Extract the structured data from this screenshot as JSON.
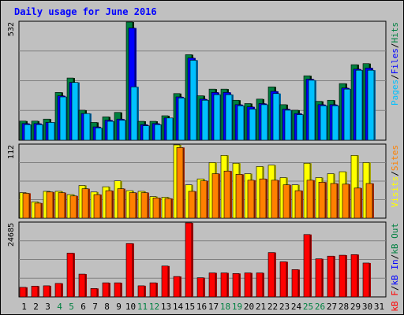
{
  "chart_data": {
    "type": "bar",
    "title": "Daily usage for June 2016",
    "categories": [
      "1",
      "2",
      "3",
      "4",
      "5",
      "6",
      "7",
      "8",
      "9",
      "10",
      "11",
      "12",
      "13",
      "14",
      "15",
      "16",
      "17",
      "18",
      "19",
      "20",
      "21",
      "22",
      "23",
      "24",
      "25",
      "26",
      "27",
      "28",
      "29",
      "30",
      "31"
    ],
    "weekend_days": [
      "4",
      "5",
      "11",
      "12",
      "18",
      "19",
      "25",
      "26"
    ],
    "panels": [
      {
        "id": "top",
        "ymax_label": "532",
        "ymax": 532,
        "legend": [
          {
            "text": "Pages",
            "color": "#00c0ff"
          },
          {
            "text": "/",
            "color": "#000000"
          },
          {
            "text": "Files",
            "color": "#0000ff"
          },
          {
            "text": "/",
            "color": "#000000"
          },
          {
            "text": "Hits",
            "color": "#008040"
          }
        ],
        "series": [
          {
            "name": "Hits",
            "color": "#008040",
            "values": [
              86,
              86,
              95,
              215,
              280,
              135,
              80,
              105,
              125,
              532,
              85,
              85,
              110,
              210,
              385,
              200,
              230,
              230,
              180,
              165,
              185,
              240,
              160,
              135,
              290,
              175,
              180,
              255,
              340,
              345,
              0
            ]
          },
          {
            "name": "Files",
            "color": "#0000ff",
            "values": [
              75,
              75,
              80,
              200,
              260,
              120,
              60,
              90,
              95,
              505,
              70,
              75,
              100,
              195,
              370,
              185,
              215,
              215,
              160,
              150,
              165,
              220,
              140,
              120,
              275,
              160,
              160,
              235,
              320,
              325,
              0
            ]
          },
          {
            "name": "Pages",
            "color": "#00c0ff",
            "values": [
              70,
              70,
              80,
              195,
              260,
              120,
              55,
              85,
              90,
              240,
              65,
              70,
              100,
              190,
              360,
              180,
              205,
              205,
              155,
              140,
              160,
              210,
              135,
              115,
              270,
              155,
              155,
              230,
              315,
              315,
              0
            ]
          }
        ]
      },
      {
        "id": "middle",
        "ymax_label": "112",
        "ymax": 112,
        "legend": [
          {
            "text": "Visits",
            "color": "#ffff00"
          },
          {
            "text": "/",
            "color": "#000000"
          },
          {
            "text": "Sites",
            "color": "#ff8000"
          }
        ],
        "series": [
          {
            "name": "Visits",
            "color": "#ffff00",
            "values": [
              39,
              25,
              41,
              41,
              36,
              50,
              40,
              48,
              57,
              42,
              41,
              33,
              32,
              112,
              51,
              60,
              85,
              96,
              84,
              68,
              79,
              81,
              62,
              51,
              84,
              62,
              68,
              71,
              96,
              85,
              0
            ]
          },
          {
            "name": "Sites",
            "color": "#ff8000",
            "values": [
              38,
              23,
              40,
              39,
              34,
              45,
              36,
              42,
              45,
              39,
              39,
              31,
              30,
              108,
              41,
              57,
              68,
              72,
              67,
              58,
              60,
              58,
              51,
              42,
              58,
              55,
              53,
              52,
              46,
              53,
              0
            ]
          }
        ]
      },
      {
        "id": "bottom",
        "ymax_label": "24685",
        "ymax": 24685,
        "legend": [
          {
            "text": "kB F",
            "color": "#ff0000"
          },
          {
            "text": "/",
            "color": "#000000"
          },
          {
            "text": "kB In",
            "color": "#0000ff"
          },
          {
            "text": "/",
            "color": "#000000"
          },
          {
            "text": "kB Out",
            "color": "#008040"
          }
        ],
        "series": [
          {
            "name": "kB F",
            "color": "#ff0000",
            "values": [
              3200,
              3600,
              3700,
              4500,
              14600,
              7600,
              2800,
              4700,
              4700,
              17800,
              3700,
              4700,
              10300,
              6800,
              24685,
              6400,
              8000,
              8000,
              7800,
              8000,
              8000,
              14800,
              11700,
              9100,
              20800,
              12700,
              13600,
              13900,
              14100,
              11300,
              0
            ]
          }
        ]
      }
    ]
  }
}
